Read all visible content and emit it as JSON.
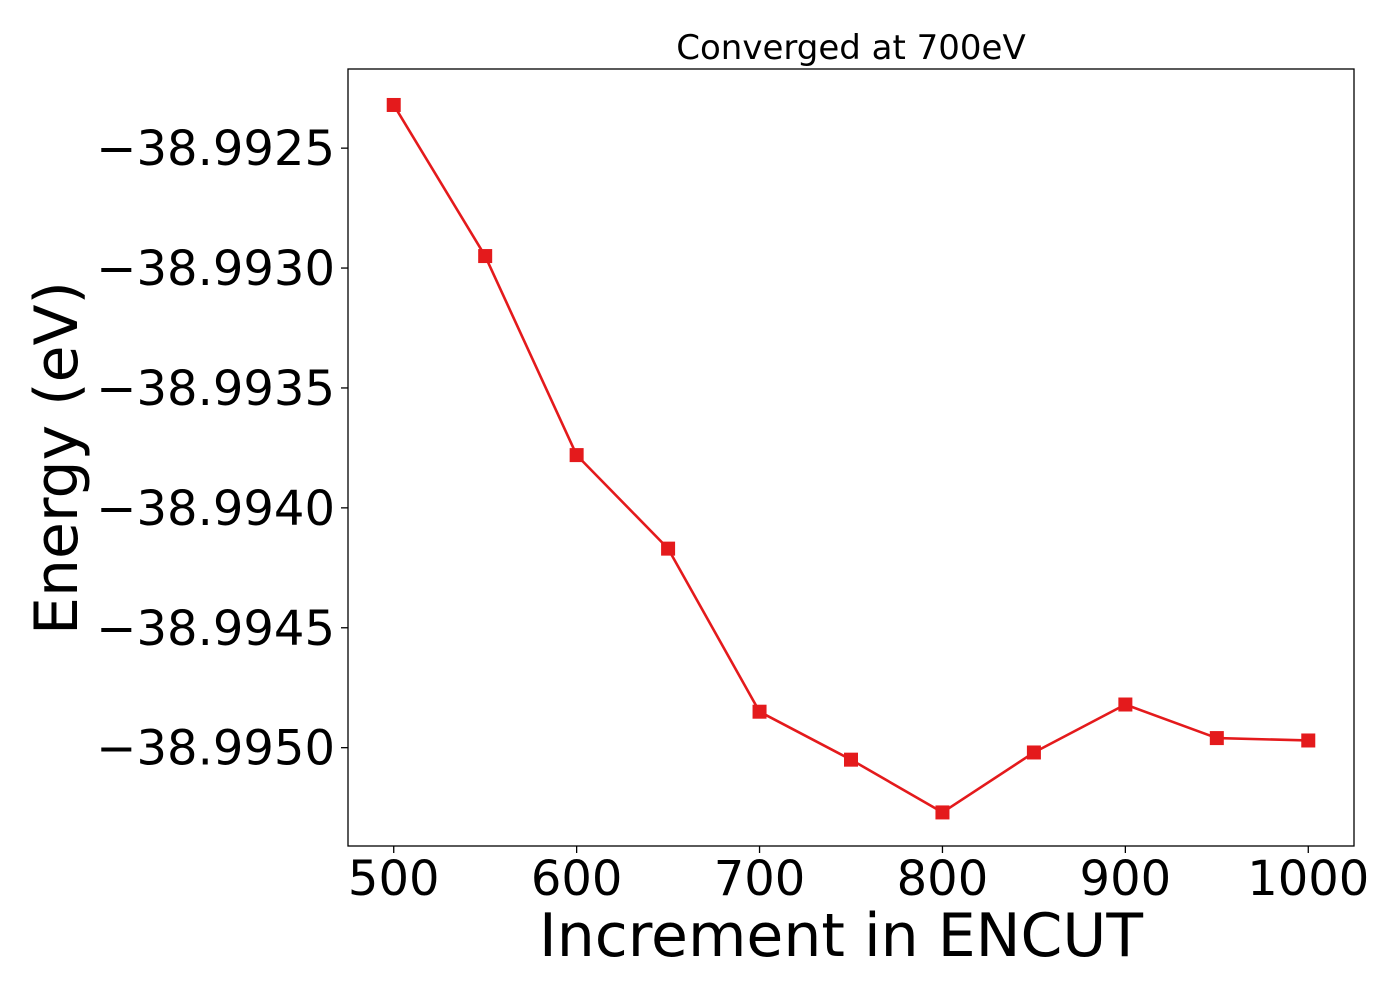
{
  "chart_data": {
    "type": "line",
    "title": "Converged at 700eV",
    "xlabel": "Increment in ENCUT",
    "ylabel": "Energy (eV)",
    "xlim": [
      475,
      1025
    ],
    "ylim": [
      -38.99541,
      -38.99217
    ],
    "x_ticks": [
      500,
      600,
      700,
      800,
      900,
      1000
    ],
    "x_tick_labels": [
      "500",
      "600",
      "700",
      "800",
      "900",
      "1000"
    ],
    "y_ticks": [
      -38.9925,
      -38.993,
      -38.9935,
      -38.994,
      -38.9945,
      -38.995
    ],
    "y_tick_labels": [
      "−38.9925",
      "−38.9930",
      "−38.9935",
      "−38.9940",
      "−38.9945",
      "−38.9950"
    ],
    "grid": false,
    "series": [
      {
        "color": "#e41a1c",
        "marker": "square",
        "x": [
          500,
          550,
          600,
          650,
          700,
          750,
          800,
          850,
          900,
          950,
          1000
        ],
        "y": [
          -38.99232,
          -38.99295,
          -38.99378,
          -38.99417,
          -38.99485,
          -38.99505,
          -38.99527,
          -38.99502,
          -38.99482,
          -38.99496,
          -38.99497
        ]
      }
    ]
  }
}
